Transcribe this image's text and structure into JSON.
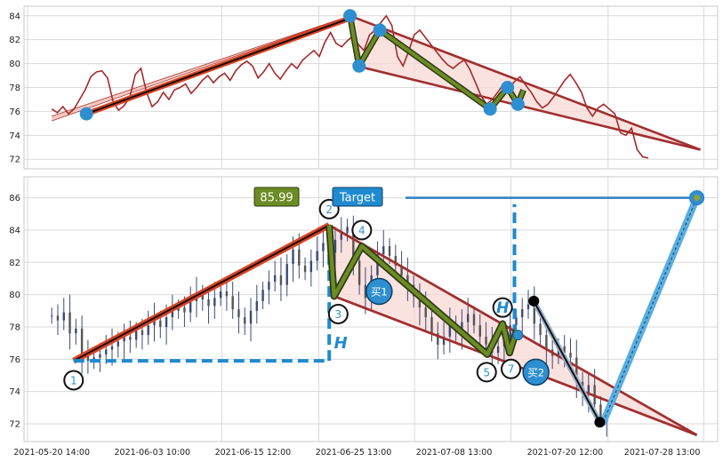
{
  "colors": {
    "background": "#ffffff",
    "grid": "#d9d9d9",
    "axis_frame": "#c8c8c8",
    "price_line": "#a52a2a",
    "trend_red": "#e04020",
    "trend_dark": "#111111",
    "channel_line": "#a03030",
    "channel_fill": "#f8d8d4",
    "zigzag_outer": "#2f3a18",
    "zigzag_inner": "#6b8c23",
    "pivot_blue": "#2e8fd0",
    "target_blue": "#2f7fc1",
    "target_stroke": "#5aaee0",
    "candle_up": "#3c4a7a",
    "candle_down": "#555555",
    "dashed_blue": "#1f8ad0",
    "label_green": "#6b8c23",
    "label_blue": "#1f8ad0",
    "black_point": "#000000"
  },
  "chart_data": [
    {
      "type": "line",
      "panel": "top",
      "ylim": [
        71.2,
        84.8
      ],
      "yticks": [
        "72",
        "74",
        "76",
        "78",
        "80",
        "82",
        "84"
      ],
      "price_series": [
        76.2,
        75.9,
        76.4,
        75.8,
        76.2,
        77.0,
        77.8,
        78.9,
        79.3,
        79.4,
        78.8,
        76.8,
        76.1,
        76.5,
        77.2,
        79.1,
        79.6,
        77.6,
        76.4,
        76.8,
        77.6,
        77.0,
        77.8,
        78.0,
        78.3,
        77.5,
        78.0,
        78.6,
        79.0,
        78.4,
        78.9,
        79.2,
        78.6,
        79.4,
        79.9,
        80.2,
        79.8,
        78.8,
        79.3,
        80.0,
        79.2,
        78.7,
        79.4,
        80.0,
        79.6,
        80.3,
        80.7,
        81.1,
        80.6,
        81.8,
        82.6,
        81.7,
        81.4,
        81.9,
        82.3,
        81.6,
        81.1,
        82.4,
        82.8,
        83.4,
        84.0,
        83.2,
        80.6,
        79.8,
        81.0,
        82.4,
        82.8,
        82.2,
        81.6,
        81.0,
        80.4,
        79.9,
        79.6,
        80.0,
        80.3,
        79.5,
        78.4,
        77.3,
        76.6,
        77.0,
        77.6,
        78.3,
        77.9,
        78.5,
        78.9,
        78.2,
        77.6,
        76.8,
        76.3,
        76.6,
        77.2,
        77.9,
        78.6,
        79.1,
        78.4,
        77.6,
        76.3,
        75.6,
        76.3,
        76.6,
        76.2,
        75.8,
        74.2,
        74.0,
        74.6,
        72.8,
        72.2,
        72.1
      ],
      "trend_line": [
        [
          0.09,
          75.8
        ],
        [
          0.47,
          83.8
        ]
      ],
      "channel_upper": [
        [
          0.47,
          84.0
        ],
        [
          0.975,
          72.8
        ]
      ],
      "channel_lower": [
        [
          0.48,
          79.8
        ],
        [
          0.975,
          72.8
        ]
      ],
      "zigzag": [
        [
          0.47,
          84.0
        ],
        [
          0.483,
          79.8
        ],
        [
          0.513,
          82.8
        ],
        [
          0.672,
          76.2
        ],
        [
          0.697,
          78.0
        ],
        [
          0.712,
          76.6
        ],
        [
          0.72,
          77.8
        ]
      ],
      "pivots": [
        [
          0.09,
          75.8
        ],
        [
          0.47,
          84.0
        ],
        [
          0.483,
          79.8
        ],
        [
          0.513,
          82.8
        ],
        [
          0.672,
          76.2
        ],
        [
          0.697,
          78.0
        ],
        [
          0.712,
          76.6
        ]
      ]
    },
    {
      "type": "candlestick",
      "panel": "bottom",
      "ylim": [
        70.9,
        87.3
      ],
      "yticks": [
        "72",
        "74",
        "76",
        "78",
        "80",
        "82",
        "84",
        "86"
      ],
      "x_tick_labels": [
        "2021-05-20 14:00",
        "2021-06-03 10:00",
        "2021-06-15 12:00",
        "2021-06-25 13:00",
        "2021-07-08 13:00",
        "2021-07-20 12:00",
        "2021-07-28 13:00"
      ],
      "closes": [
        78.7,
        78.4,
        78.9,
        77.6,
        77.9,
        76.2,
        75.9,
        76.1,
        76.3,
        76.6,
        76.8,
        77.1,
        77.4,
        77.2,
        77.8,
        77.5,
        78.1,
        78.4,
        78.0,
        78.6,
        79.0,
        79.2,
        78.9,
        79.6,
        80.0,
        79.7,
        79.3,
        79.8,
        80.2,
        79.9,
        79.1,
        78.6,
        78.2,
        79.0,
        79.6,
        80.3,
        80.8,
        81.2,
        80.6,
        81.9,
        82.8,
        81.8,
        81.4,
        82.1,
        82.7,
        83.2,
        82.6,
        83.4,
        83.8,
        84.2,
        82.1,
        80.6,
        79.8,
        81.2,
        82.5,
        83.0,
        82.4,
        81.8,
        81.2,
        80.6,
        79.9,
        79.2,
        78.6,
        77.6,
        76.9,
        77.4,
        78.1,
        77.7,
        78.3,
        78.8,
        78.1,
        77.4,
        76.9,
        76.4,
        76.8,
        77.4,
        78.1,
        78.6,
        79.1,
        79.4,
        78.2,
        77.5,
        76.6,
        76.2,
        76.8,
        76.4,
        76.1,
        74.6,
        73.8,
        74.4,
        73.2,
        72.4,
        72.1
      ],
      "trend_line": [
        [
          0.0715,
          75.9
        ],
        [
          0.44,
          84.3
        ]
      ],
      "channel_upper": [
        [
          0.44,
          84.3
        ],
        [
          0.97,
          71.3
        ]
      ],
      "channel_lower": [
        [
          0.447,
          79.9
        ],
        [
          0.97,
          71.3
        ]
      ],
      "zigzag": [
        [
          0.44,
          84.3
        ],
        [
          0.447,
          79.9
        ],
        [
          0.487,
          83.0
        ],
        [
          0.668,
          76.3
        ],
        [
          0.69,
          78.2
        ],
        [
          0.7,
          76.4
        ],
        [
          0.71,
          77.8
        ]
      ],
      "dashed_h_left": [
        [
          0.0715,
          75.9
        ],
        [
          0.44,
          75.9
        ]
      ],
      "dashed_v_left": [
        [
          0.44,
          75.9
        ],
        [
          0.44,
          84.3
        ]
      ],
      "dashed_v_right": [
        [
          0.707,
          77.5
        ],
        [
          0.707,
          85.6
        ]
      ],
      "target_arrow": [
        [
          0.55,
          86.0
        ],
        [
          0.97,
          86.0
        ]
      ],
      "final_leg_blue": [
        [
          0.835,
          72.1
        ],
        [
          0.97,
          86.0
        ]
      ],
      "black_leg": [
        [
          0.735,
          79.6
        ],
        [
          0.83,
          72.1
        ]
      ],
      "black_points": [
        [
          0.735,
          79.6
        ],
        [
          0.83,
          72.1
        ]
      ],
      "target_point": [
        0.97,
        86.0
      ],
      "label_85_99": "85.99",
      "label_target": "Target",
      "label_buy1": "买1",
      "label_buy2": "买2",
      "label_h": "H",
      "pivot_numbers": [
        {
          "num": "1",
          "x": 0.0715,
          "y": 74.7
        },
        {
          "num": "2",
          "x": 0.44,
          "y": 85.3
        },
        {
          "num": "3",
          "x": 0.453,
          "y": 78.8
        },
        {
          "num": "4",
          "x": 0.487,
          "y": 84.0
        },
        {
          "num": "5",
          "x": 0.667,
          "y": 75.2
        },
        {
          "num": "7",
          "x": 0.702,
          "y": 75.4
        }
      ]
    }
  ]
}
